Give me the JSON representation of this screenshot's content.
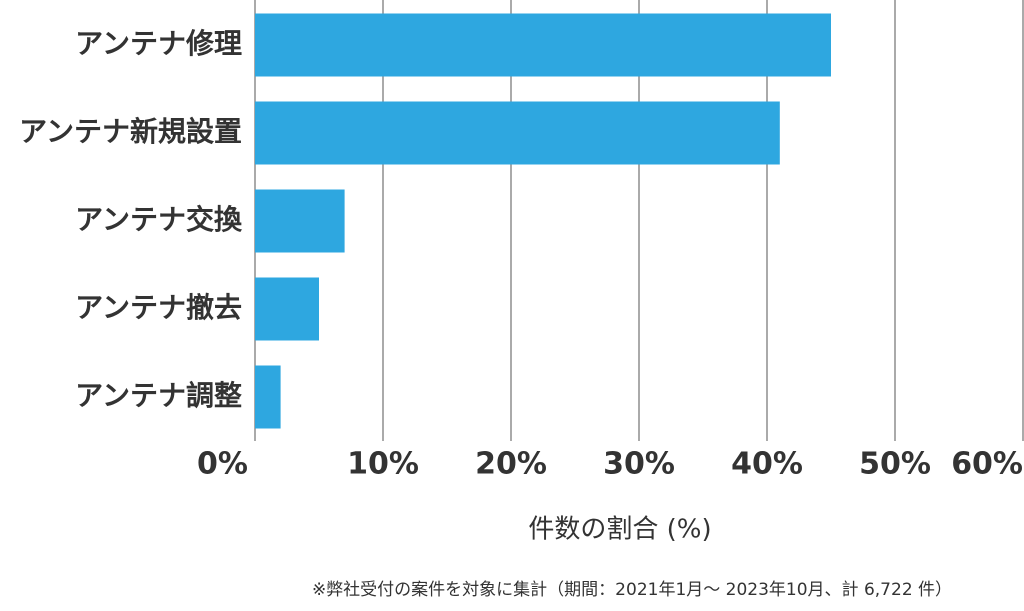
{
  "chart_data": {
    "type": "barh",
    "x_label": "件数の割合 (%)",
    "footnote": "※弊社受付の案件を対象に集計（期間：2021年1月～ 2023年10月、計 6,722 件）",
    "categories": [
      "アンテナ修理",
      "アンテナ新規設置",
      "アンテナ交換",
      "アンテナ撤去",
      "アンテナ調整"
    ],
    "values": [
      45,
      41,
      7,
      5,
      2
    ],
    "color": "#2ea7e0",
    "xlim": [
      0,
      60
    ],
    "xticks": [
      {
        "value": 0,
        "label": "0%"
      },
      {
        "value": 10,
        "label": "10%"
      },
      {
        "value": 20,
        "label": "20%"
      },
      {
        "value": 30,
        "label": "30%"
      },
      {
        "value": 40,
        "label": "40%"
      },
      {
        "value": 50,
        "label": "50%"
      },
      {
        "value": 60,
        "label": "60%"
      }
    ],
    "grid": true
  }
}
